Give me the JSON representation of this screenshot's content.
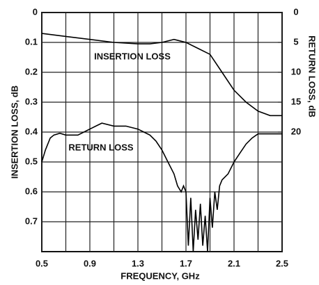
{
  "chart_data": {
    "type": "line",
    "xlabel": "FREQUENCY, GHz",
    "ylabel": "INSERTION LOSS, dB",
    "y2label": "RETURN LOSS, dB",
    "xlim": [
      0.5,
      2.5
    ],
    "xticks": [
      0.5,
      0.9,
      1.3,
      1.7,
      2.1,
      2.5
    ],
    "x_minor_grid": [
      0.7,
      1.1,
      1.5,
      1.9,
      2.3
    ],
    "ylim": [
      0,
      0.8
    ],
    "yticks": [
      0,
      0.1,
      0.2,
      0.3,
      0.4,
      0.5,
      0.6,
      0.7
    ],
    "y2lim": [
      0,
      40
    ],
    "y2ticks": [
      0,
      5,
      10,
      15,
      20
    ],
    "y_inverted": true,
    "grid": true,
    "series": [
      {
        "name": "INSERTION LOSS",
        "color": "#000000",
        "x": [
          0.5,
          0.7,
          0.9,
          1.1,
          1.3,
          1.4,
          1.5,
          1.6,
          1.7,
          1.8,
          1.9,
          2.0,
          2.1,
          2.2,
          2.3,
          2.4,
          2.5
        ],
        "values": [
          0.07,
          0.08,
          0.09,
          0.1,
          0.105,
          0.105,
          0.1,
          0.09,
          0.1,
          0.12,
          0.14,
          0.2,
          0.26,
          0.3,
          0.33,
          0.345,
          0.345
        ]
      },
      {
        "name": "RETURN LOSS",
        "color": "#000000",
        "axis": "y2",
        "x": [
          0.5,
          0.53,
          0.57,
          0.6,
          0.65,
          0.7,
          0.8,
          0.9,
          0.95,
          1.0,
          1.1,
          1.2,
          1.3,
          1.35,
          1.4,
          1.45,
          1.5,
          1.55,
          1.6,
          1.63,
          1.66,
          1.68,
          1.7,
          1.72,
          1.74,
          1.76,
          1.78,
          1.8,
          1.82,
          1.84,
          1.86,
          1.88,
          1.9,
          1.92,
          1.94,
          1.96,
          1.98,
          2.0,
          2.05,
          2.1,
          2.15,
          2.2,
          2.25,
          2.3,
          2.4,
          2.5
        ],
        "values": [
          25,
          23,
          21,
          20.5,
          20.2,
          20.5,
          20.5,
          19.5,
          19,
          18.5,
          19,
          19,
          19.5,
          20,
          20.5,
          21.5,
          23,
          25,
          27,
          29,
          30,
          29,
          30,
          39,
          31,
          40,
          33,
          38,
          32,
          39,
          34,
          40,
          31,
          36,
          30,
          33,
          29,
          28,
          27,
          25,
          23.5,
          22,
          21,
          20.3,
          20.3,
          20.3
        ]
      }
    ]
  }
}
